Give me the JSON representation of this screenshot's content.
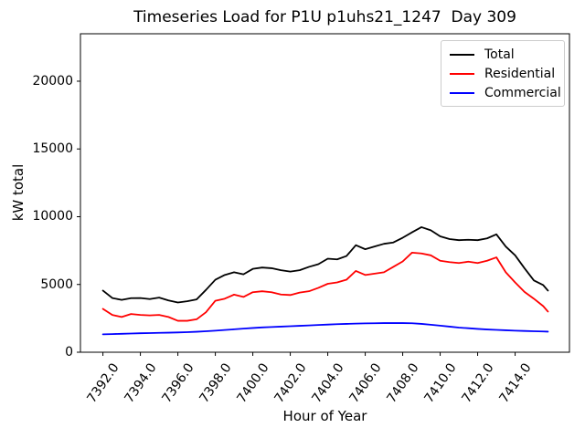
{
  "chart_data": {
    "type": "line",
    "title": "Timeseries Load for P1U p1uhs21_1247  Day 309",
    "xlabel": "Hour of Year",
    "ylabel": "kW total",
    "background": "#ffffff",
    "grid": false,
    "legend_position": "upper right",
    "xlim": [
      7390.8,
      7416.9
    ],
    "ylim": [
      0,
      23500
    ],
    "x_ticks": {
      "values": [
        7392,
        7394,
        7396,
        7398,
        7400,
        7402,
        7404,
        7406,
        7408,
        7410,
        7412,
        7414
      ],
      "labels": [
        "7392.0",
        "7394.0",
        "7396.0",
        "7398.0",
        "7400.0",
        "7402.0",
        "7404.0",
        "7406.0",
        "7408.0",
        "7410.0",
        "7412.0",
        "7414.0"
      ]
    },
    "y_ticks": {
      "values": [
        0,
        5000,
        10000,
        15000,
        20000
      ],
      "labels": [
        "0",
        "5000",
        "10000",
        "15000",
        "20000"
      ]
    },
    "x": [
      7392,
      7392.5,
      7393,
      7393.5,
      7394,
      7394.5,
      7395,
      7395.5,
      7396,
      7396.5,
      7397,
      7397.5,
      7398,
      7398.5,
      7399,
      7399.5,
      7400,
      7400.5,
      7401,
      7401.5,
      7402,
      7402.5,
      7403,
      7403.5,
      7404,
      7404.5,
      7405,
      7405.5,
      7406,
      7406.5,
      7407,
      7407.5,
      7408,
      7408.5,
      7409,
      7409.5,
      7410,
      7410.5,
      7411,
      7411.5,
      7412,
      7412.5,
      7413,
      7413.5,
      7414,
      7414.5,
      7415,
      7415.5,
      7415.75
    ],
    "series": [
      {
        "name": "Total",
        "color": "#000000",
        "values": [
          4550,
          4000,
          3860,
          3990,
          4000,
          3920,
          4030,
          3820,
          3670,
          3760,
          3900,
          4600,
          5350,
          5700,
          5900,
          5750,
          6150,
          6250,
          6200,
          6050,
          5950,
          6050,
          6300,
          6500,
          6900,
          6850,
          7100,
          7900,
          7600,
          7800,
          8000,
          8100,
          8450,
          8850,
          9230,
          9000,
          8550,
          8350,
          8270,
          8300,
          8270,
          8400,
          8700,
          7800,
          7150,
          6200,
          5300,
          4950,
          4550
        ]
      },
      {
        "name": "Residential",
        "color": "#ff0000",
        "values": [
          3200,
          2750,
          2600,
          2820,
          2750,
          2720,
          2750,
          2600,
          2320,
          2320,
          2430,
          2950,
          3800,
          3950,
          4250,
          4080,
          4430,
          4500,
          4430,
          4260,
          4220,
          4400,
          4500,
          4750,
          5050,
          5150,
          5350,
          6000,
          5700,
          5800,
          5900,
          6300,
          6700,
          7350,
          7290,
          7150,
          6750,
          6650,
          6580,
          6680,
          6580,
          6750,
          7000,
          5900,
          5150,
          4450,
          3950,
          3400,
          3000
        ]
      },
      {
        "name": "Commercial",
        "color": "#0000ff",
        "values": [
          1320,
          1340,
          1360,
          1380,
          1400,
          1415,
          1430,
          1445,
          1460,
          1480,
          1510,
          1550,
          1590,
          1640,
          1690,
          1740,
          1790,
          1830,
          1860,
          1890,
          1920,
          1950,
          1980,
          2010,
          2040,
          2070,
          2090,
          2110,
          2130,
          2140,
          2150,
          2150,
          2150,
          2140,
          2090,
          2030,
          1960,
          1890,
          1820,
          1770,
          1720,
          1680,
          1650,
          1620,
          1590,
          1570,
          1550,
          1530,
          1520
        ]
      }
    ]
  }
}
